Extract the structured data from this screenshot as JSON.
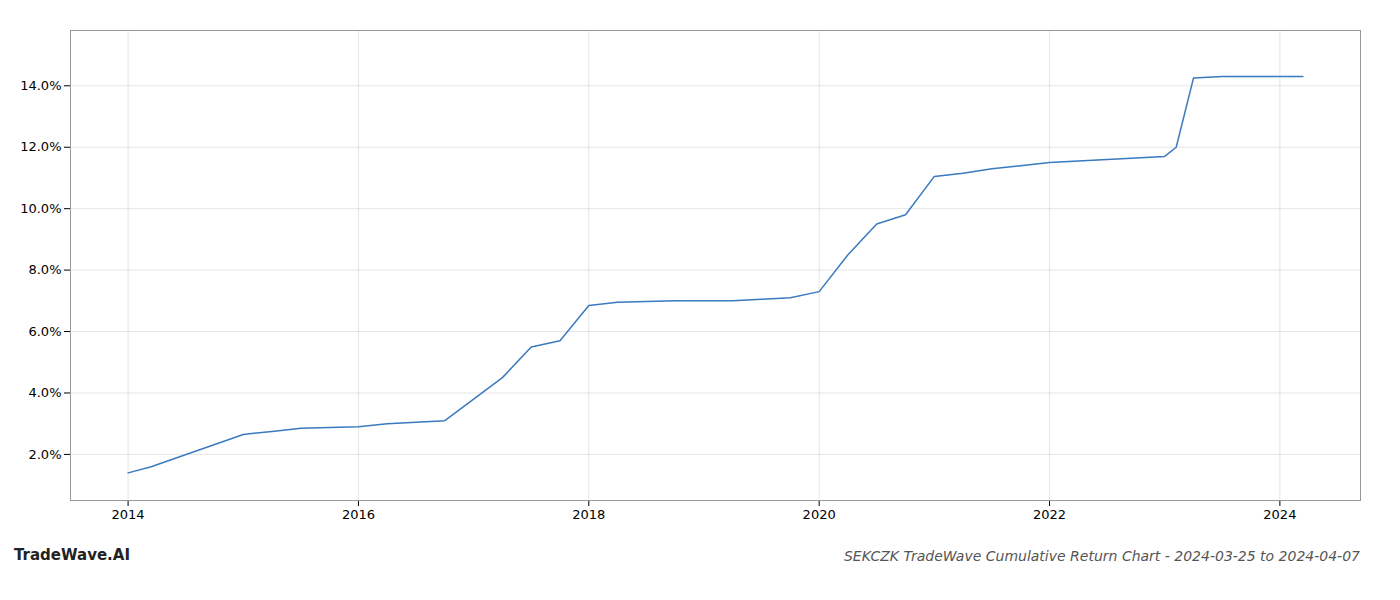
{
  "chart_data": {
    "type": "line",
    "title": "SEKCZK TradeWave Cumulative Return Chart - 2024-03-25 to 2024-04-07",
    "annotations": [
      "TradeWave.AI"
    ],
    "x": [
      2014.0,
      2014.2,
      2015.0,
      2015.25,
      2015.5,
      2016.0,
      2016.25,
      2016.75,
      2017.0,
      2017.25,
      2017.5,
      2017.75,
      2018.0,
      2018.25,
      2018.75,
      2019.0,
      2019.25,
      2019.5,
      2019.75,
      2020.0,
      2020.25,
      2020.5,
      2020.75,
      2021.0,
      2021.25,
      2021.5,
      2021.75,
      2022.0,
      2022.25,
      2022.5,
      2022.75,
      2023.0,
      2023.1,
      2023.25,
      2023.5,
      2023.75,
      2024.0,
      2024.2
    ],
    "values": [
      1.4,
      1.6,
      2.65,
      2.75,
      2.85,
      2.9,
      3.0,
      3.1,
      3.8,
      4.5,
      5.5,
      5.7,
      6.85,
      6.95,
      7.0,
      7.0,
      7.0,
      7.05,
      7.1,
      7.3,
      8.5,
      9.5,
      9.8,
      11.05,
      11.15,
      11.3,
      11.4,
      11.5,
      11.55,
      11.6,
      11.65,
      11.7,
      12.0,
      14.25,
      14.3,
      14.3,
      14.3,
      14.3
    ],
    "color": "#3a7abf",
    "xlim": [
      2013.5,
      2024.7
    ],
    "ylim": [
      0.5,
      15.8
    ],
    "xticks": [
      2014,
      2016,
      2018,
      2020,
      2022,
      2024
    ],
    "yticks": [
      {
        "value": 2.0,
        "label": "2.0%"
      },
      {
        "value": 4.0,
        "label": "4.0%"
      },
      {
        "value": 6.0,
        "label": "6.0%"
      },
      {
        "value": 8.0,
        "label": "8.0%"
      },
      {
        "value": 10.0,
        "label": "10.0%"
      },
      {
        "value": 12.0,
        "label": "12.0%"
      },
      {
        "value": 14.0,
        "label": "14.0%"
      }
    ],
    "grid": true
  }
}
